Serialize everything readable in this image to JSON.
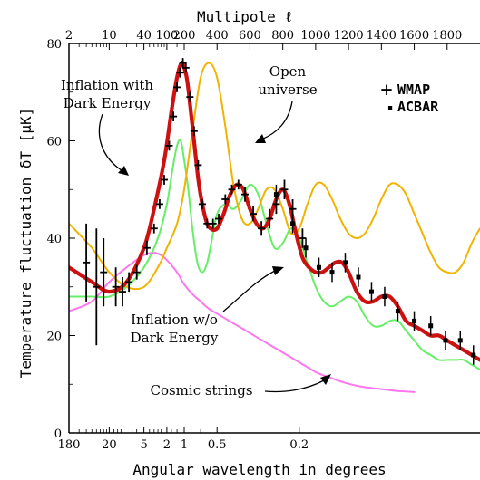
{
  "chart_data": {
    "type": "line",
    "top_axis": {
      "title": "Multipole ℓ",
      "ticks": [
        2,
        10,
        40,
        100,
        200,
        400,
        600,
        800,
        1000,
        1200,
        1400,
        1600,
        1800
      ]
    },
    "bottom_axis": {
      "title": "Angular wavelength in degrees",
      "ticks": [
        "180",
        "20",
        "5",
        "2",
        "1",
        "0.5",
        "0.2"
      ],
      "tick_multipoles": [
        2,
        10,
        40,
        100,
        200,
        400,
        900
      ]
    },
    "y_axis": {
      "title": "Temperature fluctuation δT [μK]",
      "ticks": [
        0,
        20,
        40,
        60,
        80
      ],
      "range": [
        0,
        80
      ]
    },
    "x_range_multipole": [
      2,
      2000
    ],
    "x_scale": "log below ℓ=200, linear above",
    "legend": {
      "position": "top-right",
      "entries": [
        {
          "marker": "+",
          "label": "WMAP"
        },
        {
          "marker": "▪",
          "label": "ACBAR"
        }
      ]
    },
    "annotations": [
      {
        "text_lines": [
          "Inflation with",
          "Dark Energy"
        ],
        "target": "red curve"
      },
      {
        "text_lines": [
          "Open",
          "universe"
        ],
        "target": "orange curve"
      },
      {
        "text_lines": [
          "Inflation w/o",
          "Dark Energy"
        ],
        "target": "green curve"
      },
      {
        "text_lines": [
          "Cosmic strings"
        ],
        "target": "pink curve"
      }
    ],
    "series": [
      {
        "color": "#cc1111",
        "x": [
          2,
          5,
          10,
          20,
          40,
          60,
          90,
          120,
          150,
          180,
          200,
          220,
          250,
          290,
          330,
          360,
          400,
          440,
          480,
          520,
          560,
          600,
          640,
          680,
          720,
          760,
          800,
          840,
          880,
          920,
          960,
          1000,
          1040,
          1080,
          1120,
          1160,
          1200,
          1250,
          1300,
          1350,
          1400,
          1450,
          1500,
          1550,
          1600,
          1650,
          1700,
          1750,
          1800,
          1850,
          1900,
          1950,
          2000
        ],
        "y": [
          34,
          31,
          29,
          31,
          38,
          46,
          56,
          66,
          73,
          76,
          75,
          72,
          63,
          51,
          44,
          42,
          42,
          45,
          49,
          51,
          50,
          46,
          43,
          42,
          44,
          48,
          50,
          47,
          41,
          36,
          34,
          33,
          33,
          34,
          35,
          35,
          33,
          29,
          27,
          27,
          28,
          28,
          26,
          23,
          22,
          21,
          20,
          20,
          19,
          18,
          17,
          16,
          15
        ]
      },
      {
        "color": "#f2b300",
        "x": [
          2,
          5,
          10,
          20,
          40,
          70,
          100,
          150,
          200,
          250,
          300,
          350,
          400,
          450,
          500,
          550,
          600,
          650,
          700,
          750,
          800,
          850,
          900,
          950,
          1000,
          1050,
          1100,
          1150,
          1200,
          1250,
          1300,
          1350,
          1400,
          1450,
          1500,
          1550,
          1600,
          1650,
          1700,
          1750,
          1800,
          1850,
          1900,
          1950,
          2000
        ],
        "y": [
          43,
          38,
          33,
          30,
          30,
          34,
          38,
          43,
          50,
          62,
          73,
          76,
          73,
          63,
          51,
          44,
          43,
          46,
          50,
          50,
          46,
          41,
          42,
          47,
          51,
          51,
          48,
          44,
          41,
          40,
          41,
          44,
          48,
          51,
          51,
          49,
          45,
          41,
          37,
          34,
          33,
          33,
          35,
          39,
          42
        ]
      },
      {
        "color": "#66ee66",
        "x": [
          2,
          5,
          10,
          20,
          40,
          70,
          100,
          125,
          150,
          175,
          200,
          225,
          250,
          280,
          310,
          340,
          370,
          400,
          450,
          500,
          550,
          600,
          650,
          700,
          750,
          800,
          850,
          900,
          950,
          1000,
          1050,
          1100,
          1150,
          1200,
          1250,
          1300,
          1350,
          1400,
          1450,
          1500,
          1550,
          1600,
          1650,
          1700,
          1750,
          1800,
          1850,
          1900,
          1950,
          2000
        ],
        "y": [
          28,
          28,
          28,
          30,
          34,
          40,
          47,
          54,
          59,
          60,
          56,
          50,
          42,
          35,
          33,
          35,
          40,
          45,
          47,
          46,
          48,
          51,
          49,
          43,
          38,
          39,
          42,
          40,
          35,
          30,
          27,
          26,
          27,
          28,
          27,
          24,
          22,
          22,
          23,
          23,
          21,
          19,
          17,
          16,
          15,
          15,
          15,
          15,
          14,
          13
        ]
      },
      {
        "color": "#ff77ee",
        "x": [
          2,
          5,
          10,
          20,
          40,
          60,
          80,
          100,
          130,
          160,
          200,
          250,
          300,
          350,
          400,
          450,
          500,
          550,
          600,
          650,
          700,
          750,
          800,
          850,
          900,
          950,
          1000,
          1050,
          1100,
          1150,
          1200,
          1250,
          1300,
          1350,
          1400,
          1450,
          1500,
          1550,
          1600
        ],
        "y": [
          25,
          27,
          31,
          34,
          36.5,
          37,
          36.5,
          35.5,
          34,
          32.5,
          30.5,
          28.5,
          27,
          25.5,
          24.5,
          23.5,
          22.5,
          21.5,
          20.5,
          19.5,
          18.5,
          17.5,
          16.5,
          15.5,
          14.5,
          13.5,
          12.5,
          11.8,
          11.2,
          10.6,
          10.1,
          9.7,
          9.4,
          9.2,
          9.0,
          8.8,
          8.6,
          8.5,
          8.4
        ]
      }
    ],
    "wmap_points": [
      {
        "x": 4,
        "y": 35,
        "err": 8
      },
      {
        "x": 6,
        "y": 30,
        "err": 12
      },
      {
        "x": 8,
        "y": 33,
        "err": 7
      },
      {
        "x": 13,
        "y": 30,
        "err": 4
      },
      {
        "x": 17,
        "y": 29,
        "err": 3
      },
      {
        "x": 22,
        "y": 31,
        "err": 2
      },
      {
        "x": 30,
        "y": 33,
        "err": 1.5
      },
      {
        "x": 45,
        "y": 38,
        "err": 1.5
      },
      {
        "x": 60,
        "y": 42,
        "err": 1
      },
      {
        "x": 75,
        "y": 47,
        "err": 1
      },
      {
        "x": 90,
        "y": 52,
        "err": 1
      },
      {
        "x": 110,
        "y": 59,
        "err": 1
      },
      {
        "x": 130,
        "y": 65,
        "err": 1
      },
      {
        "x": 150,
        "y": 71,
        "err": 1
      },
      {
        "x": 170,
        "y": 74,
        "err": 1
      },
      {
        "x": 190,
        "y": 76,
        "err": 1
      },
      {
        "x": 210,
        "y": 75,
        "err": 1
      },
      {
        "x": 235,
        "y": 69,
        "err": 1
      },
      {
        "x": 260,
        "y": 62,
        "err": 1
      },
      {
        "x": 285,
        "y": 55,
        "err": 1
      },
      {
        "x": 310,
        "y": 47,
        "err": 1
      },
      {
        "x": 340,
        "y": 43,
        "err": 1
      },
      {
        "x": 375,
        "y": 43,
        "err": 1
      },
      {
        "x": 410,
        "y": 44,
        "err": 1
      },
      {
        "x": 450,
        "y": 48,
        "err": 1
      },
      {
        "x": 490,
        "y": 50,
        "err": 1
      },
      {
        "x": 530,
        "y": 51,
        "err": 1
      },
      {
        "x": 570,
        "y": 49,
        "err": 1.5
      },
      {
        "x": 620,
        "y": 45,
        "err": 1.5
      },
      {
        "x": 670,
        "y": 42,
        "err": 1.5
      },
      {
        "x": 720,
        "y": 44,
        "err": 2
      },
      {
        "x": 760,
        "y": 47,
        "err": 2
      },
      {
        "x": 810,
        "y": 50,
        "err": 2
      },
      {
        "x": 860,
        "y": 46,
        "err": 2
      },
      {
        "x": 920,
        "y": 40,
        "err": 2
      }
    ],
    "acbar_points": [
      {
        "x": 760,
        "y": 49,
        "err": 2
      },
      {
        "x": 860,
        "y": 43,
        "err": 2
      },
      {
        "x": 940,
        "y": 38,
        "err": 2
      },
      {
        "x": 1020,
        "y": 34,
        "err": 2
      },
      {
        "x": 1100,
        "y": 33,
        "err": 2
      },
      {
        "x": 1180,
        "y": 35,
        "err": 2
      },
      {
        "x": 1260,
        "y": 32,
        "err": 2
      },
      {
        "x": 1340,
        "y": 29,
        "err": 2
      },
      {
        "x": 1420,
        "y": 28,
        "err": 2
      },
      {
        "x": 1500,
        "y": 25,
        "err": 2
      },
      {
        "x": 1600,
        "y": 23,
        "err": 2
      },
      {
        "x": 1700,
        "y": 22,
        "err": 2
      },
      {
        "x": 1790,
        "y": 19,
        "err": 2
      },
      {
        "x": 1880,
        "y": 19,
        "err": 2
      },
      {
        "x": 1960,
        "y": 16,
        "err": 2
      }
    ]
  }
}
